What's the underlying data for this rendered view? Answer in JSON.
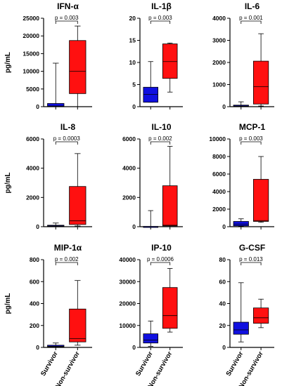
{
  "groups": [
    "Survivor",
    "Non-survivor"
  ],
  "colors": {
    "survivor": "#1010e0",
    "non_survivor": "#ff1010"
  },
  "chart_data": [
    {
      "type": "box",
      "title": "IFN-α",
      "ylabel": "pg/mL",
      "ylim": [
        0,
        25000
      ],
      "yticks": [
        0,
        5000,
        10000,
        15000,
        20000,
        25000
      ],
      "pvalue": "p = 0.003",
      "series": [
        {
          "group": "Survivor",
          "min": 0,
          "q1": 50,
          "median": 200,
          "q3": 900,
          "max": 12300
        },
        {
          "group": "Non-survivor",
          "min": 0,
          "q1": 3700,
          "median": 10000,
          "q3": 18700,
          "max": 22800
        }
      ]
    },
    {
      "type": "box",
      "title": "IL-1β",
      "ylabel": "",
      "ylim": [
        0,
        20
      ],
      "yticks": [
        0,
        5,
        10,
        15,
        20
      ],
      "pvalue": "p = 0.003",
      "series": [
        {
          "group": "Survivor",
          "min": 1.0,
          "q1": 1.0,
          "median": 2.8,
          "q3": 4.4,
          "max": 10.2
        },
        {
          "group": "Non-survivor",
          "min": 3.3,
          "q1": 6.4,
          "median": 10.2,
          "q3": 14.2,
          "max": 14.4
        }
      ]
    },
    {
      "type": "box",
      "title": "IL-6",
      "ylabel": "",
      "ylim": [
        0,
        4000
      ],
      "yticks": [
        0,
        1000,
        2000,
        3000,
        4000
      ],
      "pvalue": "p = 0.001",
      "series": [
        {
          "group": "Survivor",
          "min": 0,
          "q1": 10,
          "median": 30,
          "q3": 70,
          "max": 220
        },
        {
          "group": "Non-survivor",
          "min": 30,
          "q1": 120,
          "median": 900,
          "q3": 2060,
          "max": 3300
        }
      ]
    },
    {
      "type": "box",
      "title": "IL-8",
      "ylabel": "pg/mL",
      "ylim": [
        0,
        6000
      ],
      "yticks": [
        0,
        2000,
        4000,
        6000
      ],
      "pvalue": "p = 0.0003",
      "series": [
        {
          "group": "Survivor",
          "min": 0,
          "q1": 20,
          "median": 50,
          "q3": 100,
          "max": 250
        },
        {
          "group": "Non-survivor",
          "min": 50,
          "q1": 150,
          "median": 400,
          "q3": 2750,
          "max": 5000
        }
      ]
    },
    {
      "type": "box",
      "title": "IL-10",
      "ylabel": "",
      "ylim": [
        0,
        6000
      ],
      "yticks": [
        0,
        2000,
        4000,
        6000
      ],
      "pvalue": "p = 0.002",
      "series": [
        {
          "group": "Survivor",
          "min": 0,
          "q1": 0,
          "median": 5,
          "q3": 20,
          "max": 1100
        },
        {
          "group": "Non-survivor",
          "min": 0,
          "q1": 50,
          "median": 100,
          "q3": 2800,
          "max": 5500
        }
      ]
    },
    {
      "type": "box",
      "title": "MCP-1",
      "ylabel": "",
      "ylim": [
        0,
        10000
      ],
      "yticks": [
        0,
        2000,
        4000,
        6000,
        8000,
        10000
      ],
      "pvalue": "p = 0.003",
      "series": [
        {
          "group": "Survivor",
          "min": 50,
          "q1": 100,
          "median": 300,
          "q3": 600,
          "max": 900
        },
        {
          "group": "Non-survivor",
          "min": 500,
          "q1": 600,
          "median": 700,
          "q3": 5400,
          "max": 8000
        }
      ]
    },
    {
      "type": "box",
      "title": "MIP-1α",
      "ylabel": "pg/mL",
      "ylim": [
        0,
        800
      ],
      "yticks": [
        0,
        200,
        400,
        600,
        800
      ],
      "pvalue": "p = 0.002",
      "series": [
        {
          "group": "Survivor",
          "min": 2,
          "q1": 5,
          "median": 10,
          "q3": 20,
          "max": 40
        },
        {
          "group": "Non-survivor",
          "min": 20,
          "q1": 50,
          "median": 80,
          "q3": 350,
          "max": 610
        }
      ]
    },
    {
      "type": "box",
      "title": "IP-10",
      "ylabel": "",
      "ylim": [
        0,
        40000
      ],
      "yticks": [
        0,
        10000,
        20000,
        30000,
        40000
      ],
      "pvalue": "p = 0.0006",
      "series": [
        {
          "group": "Survivor",
          "min": 500,
          "q1": 2000,
          "median": 3300,
          "q3": 6200,
          "max": 12000
        },
        {
          "group": "Non-survivor",
          "min": 7000,
          "q1": 8700,
          "median": 14500,
          "q3": 27300,
          "max": 36000
        }
      ]
    },
    {
      "type": "box",
      "title": "G-CSF",
      "ylabel": "",
      "ylim": [
        0,
        80
      ],
      "yticks": [
        0,
        20,
        40,
        60,
        80
      ],
      "pvalue": "p = 0.013",
      "series": [
        {
          "group": "Survivor",
          "min": 5,
          "q1": 12,
          "median": 16,
          "q3": 23,
          "max": 59
        },
        {
          "group": "Non-survivor",
          "min": 18,
          "q1": 22,
          "median": 27,
          "q3": 36,
          "max": 44
        }
      ]
    }
  ]
}
